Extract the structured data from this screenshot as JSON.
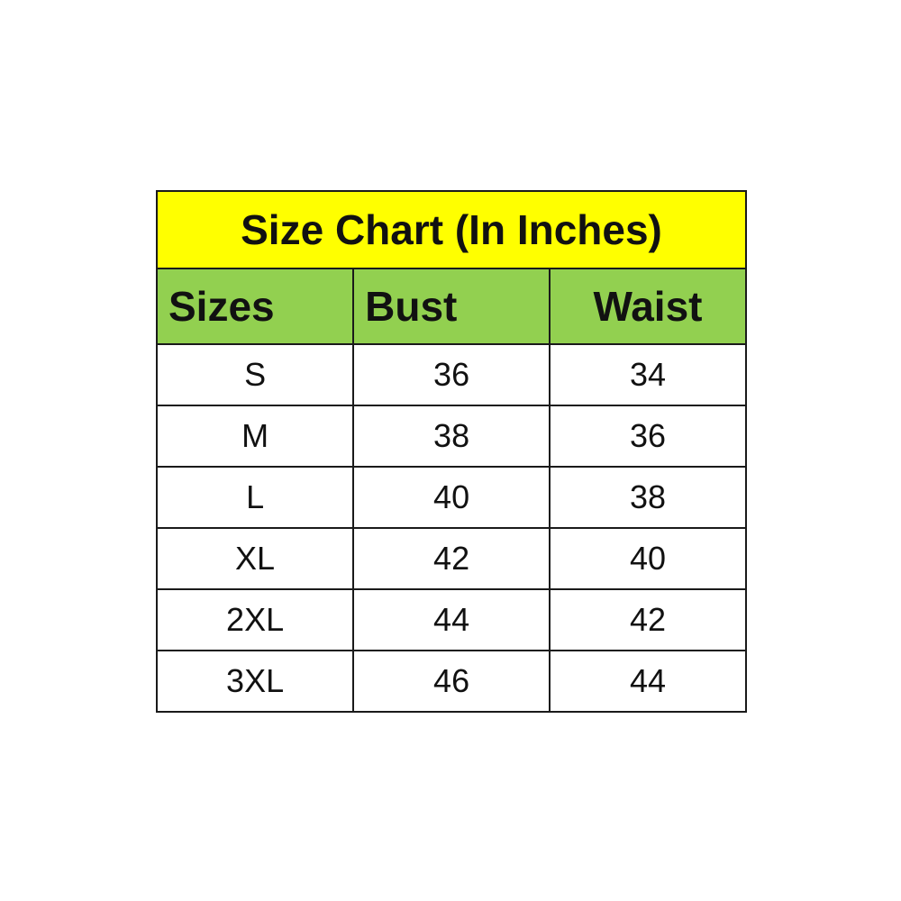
{
  "colors": {
    "title_bg": "#FFFF00",
    "header_bg": "#92D050",
    "border": "#1a1a1a"
  },
  "chart_data": {
    "type": "table",
    "title": "Size Chart (In Inches)",
    "columns": [
      "Sizes",
      "Bust",
      "Waist"
    ],
    "rows": [
      [
        "S",
        "36",
        "34"
      ],
      [
        "M",
        "38",
        "36"
      ],
      [
        "L",
        "40",
        "38"
      ],
      [
        "XL",
        "42",
        "40"
      ],
      [
        "2XL",
        "44",
        "42"
      ],
      [
        "3XL",
        "46",
        "44"
      ]
    ]
  }
}
